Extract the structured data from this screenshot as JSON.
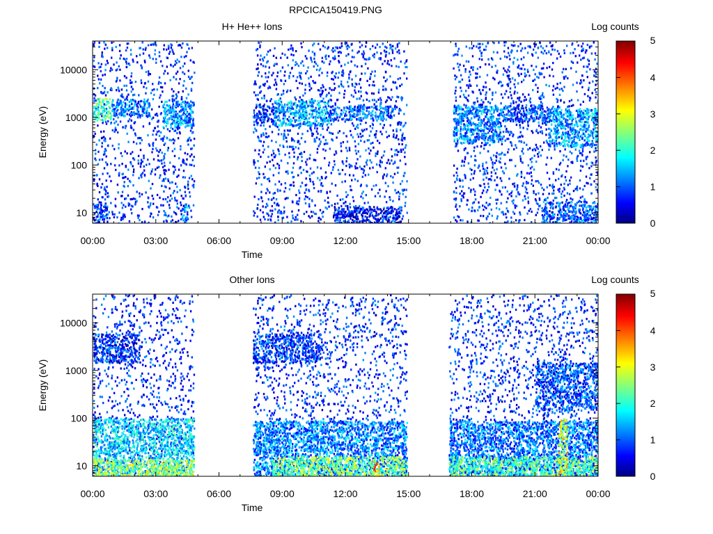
{
  "figure": {
    "title": "RPCICA150419.PNG"
  },
  "chart_data": [
    {
      "type": "heatmap",
      "title": "H+ He++ Ions",
      "xlabel": "Time",
      "ylabel": "Energy (eV)",
      "x_tick_labels": [
        "00:00",
        "03:00",
        "06:00",
        "09:00",
        "12:00",
        "15:00",
        "18:00",
        "21:00",
        "00:00"
      ],
      "x_range_hours": [
        0,
        24
      ],
      "y_scale": "log",
      "y_range": [
        6,
        40000
      ],
      "y_tick_values": [
        10,
        100,
        1000,
        10000
      ],
      "y_tick_labels": [
        "10",
        "100",
        "1000",
        "10000"
      ],
      "colorbar": {
        "label": "Log counts",
        "range": [
          0,
          5
        ],
        "tick_labels": [
          "0",
          "1",
          "2",
          "3",
          "4",
          "5"
        ]
      },
      "data_intervals_hours": [
        [
          0.0,
          4.8
        ],
        [
          7.6,
          14.9
        ],
        [
          17.1,
          24.0
        ]
      ],
      "bands": [
        {
          "t_start": 0.0,
          "t_end": 0.9,
          "e_low": 900,
          "e_high": 2600,
          "log_counts": 2.2
        },
        {
          "t_start": 0.9,
          "t_end": 2.7,
          "e_low": 1100,
          "e_high": 2500,
          "log_counts": 1.2
        },
        {
          "t_start": 3.3,
          "t_end": 4.8,
          "e_low": 600,
          "e_high": 2300,
          "log_counts": 1.4
        },
        {
          "t_start": 7.6,
          "t_end": 8.6,
          "e_low": 800,
          "e_high": 1800,
          "log_counts": 0.9
        },
        {
          "t_start": 8.6,
          "t_end": 11.2,
          "e_low": 700,
          "e_high": 2400,
          "log_counts": 1.5
        },
        {
          "t_start": 11.2,
          "t_end": 14.2,
          "e_low": 900,
          "e_high": 1800,
          "log_counts": 1.1
        },
        {
          "t_start": 17.1,
          "t_end": 19.4,
          "e_low": 300,
          "e_high": 1800,
          "log_counts": 1.3
        },
        {
          "t_start": 19.4,
          "t_end": 21.6,
          "e_low": 800,
          "e_high": 1900,
          "log_counts": 1.0
        },
        {
          "t_start": 21.6,
          "t_end": 24.0,
          "e_low": 250,
          "e_high": 1600,
          "log_counts": 1.4
        },
        {
          "t_start": 0.0,
          "t_end": 0.7,
          "e_low": 6,
          "e_high": 16,
          "log_counts": 0.9
        },
        {
          "t_start": 4.2,
          "t_end": 4.5,
          "e_low": 6,
          "e_high": 16,
          "log_counts": 1.3
        },
        {
          "t_start": 11.4,
          "t_end": 14.7,
          "e_low": 6,
          "e_high": 14,
          "log_counts": 0.7
        },
        {
          "t_start": 21.3,
          "t_end": 24.0,
          "e_low": 6,
          "e_high": 18,
          "log_counts": 1.0
        }
      ]
    },
    {
      "type": "heatmap",
      "title": "Other Ions",
      "xlabel": "Time",
      "ylabel": "Energy (eV)",
      "x_tick_labels": [
        "00:00",
        "03:00",
        "06:00",
        "09:00",
        "12:00",
        "15:00",
        "18:00",
        "21:00",
        "00:00"
      ],
      "x_range_hours": [
        0,
        24
      ],
      "y_scale": "log",
      "y_range": [
        6,
        40000
      ],
      "y_tick_values": [
        10,
        100,
        1000,
        10000
      ],
      "y_tick_labels": [
        "10",
        "100",
        "1000",
        "10000"
      ],
      "colorbar": {
        "label": "Log counts",
        "range": [
          0,
          5
        ],
        "tick_labels": [
          "0",
          "1",
          "2",
          "3",
          "4",
          "5"
        ]
      },
      "data_intervals_hours": [
        [
          0.0,
          4.8
        ],
        [
          7.6,
          14.9
        ],
        [
          16.9,
          24.0
        ]
      ],
      "bands": [
        {
          "t_start": 0.0,
          "t_end": 4.8,
          "e_low": 6,
          "e_high": 100,
          "log_counts": 1.7
        },
        {
          "t_start": 0.0,
          "t_end": 4.8,
          "e_low": 6,
          "e_high": 14,
          "log_counts": 2.7
        },
        {
          "t_start": 7.6,
          "t_end": 14.9,
          "e_low": 6,
          "e_high": 90,
          "log_counts": 1.3
        },
        {
          "t_start": 8.5,
          "t_end": 14.9,
          "e_low": 6,
          "e_high": 16,
          "log_counts": 2.5
        },
        {
          "t_start": 13.3,
          "t_end": 13.6,
          "e_low": 6,
          "e_high": 12,
          "log_counts": 3.6
        },
        {
          "t_start": 16.9,
          "t_end": 24.0,
          "e_low": 6,
          "e_high": 90,
          "log_counts": 1.2
        },
        {
          "t_start": 16.9,
          "t_end": 24.0,
          "e_low": 6,
          "e_high": 16,
          "log_counts": 2.3
        },
        {
          "t_start": 22.1,
          "t_end": 22.5,
          "e_low": 6,
          "e_high": 100,
          "log_counts": 3.0
        },
        {
          "t_start": 0.0,
          "t_end": 2.2,
          "e_low": 1500,
          "e_high": 6000,
          "log_counts": 0.8
        },
        {
          "t_start": 7.6,
          "t_end": 10.8,
          "e_low": 1500,
          "e_high": 6000,
          "log_counts": 0.9
        },
        {
          "t_start": 21.0,
          "t_end": 24.0,
          "e_low": 150,
          "e_high": 1500,
          "log_counts": 1.0
        }
      ]
    }
  ]
}
